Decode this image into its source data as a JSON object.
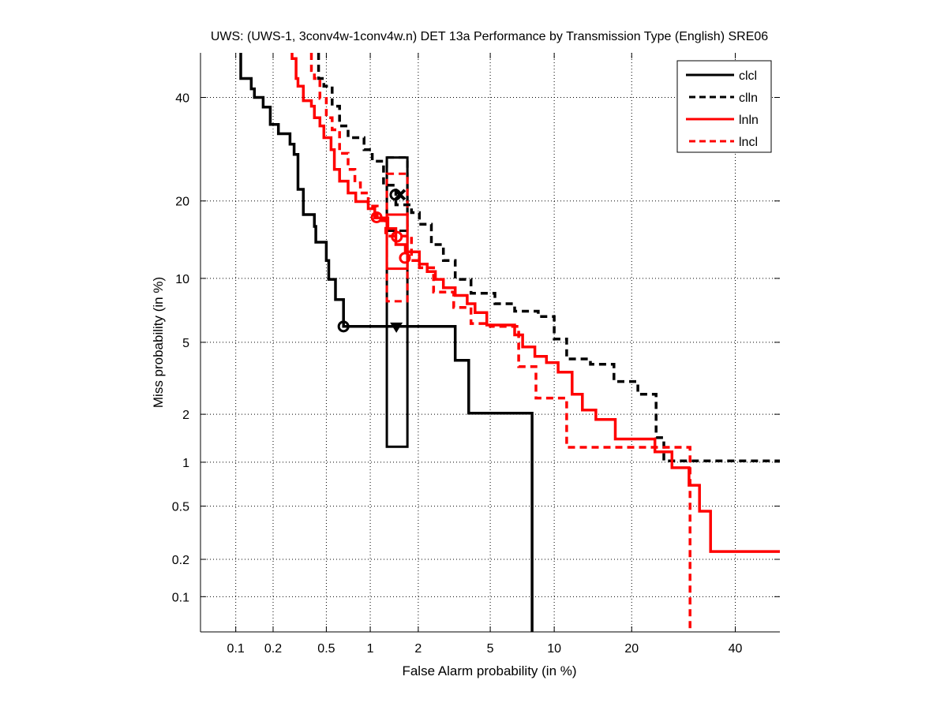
{
  "chart_data": {
    "type": "line",
    "title": "UWS: (UWS-1, 3conv4w-1conv4w.n) DET 13a Performance by Transmission Type (English) SRE06",
    "xlabel": "False Alarm probability (in %)",
    "ylabel": "Miss probability (in %)",
    "scale": "normal-deviate (probit)",
    "xlim": [
      0.05,
      50
    ],
    "ylim": [
      0.05,
      50
    ],
    "xticks": [
      "0.1",
      "0.2",
      "0.5",
      "1",
      "2",
      "5",
      "10",
      "20",
      "40"
    ],
    "yticks": [
      "0.1",
      "0.2",
      "0.5",
      "1",
      "2",
      "5",
      "10",
      "20",
      "40"
    ],
    "grid": true,
    "legend_position": "top-right",
    "series": [
      {
        "name": "clcl",
        "color": "#000000",
        "style": "solid",
        "points": [
          [
            0.11,
            50
          ],
          [
            0.11,
            44.2
          ],
          [
            0.134,
            44.2
          ],
          [
            0.134,
            41.9
          ],
          [
            0.142,
            41.9
          ],
          [
            0.142,
            40
          ],
          [
            0.167,
            40
          ],
          [
            0.167,
            37.9
          ],
          [
            0.19,
            37.9
          ],
          [
            0.19,
            34.2
          ],
          [
            0.22,
            34.2
          ],
          [
            0.22,
            32.3
          ],
          [
            0.27,
            32.3
          ],
          [
            0.27,
            30.2
          ],
          [
            0.29,
            30.2
          ],
          [
            0.29,
            28.2
          ],
          [
            0.31,
            28.2
          ],
          [
            0.31,
            21.9
          ],
          [
            0.34,
            21.9
          ],
          [
            0.34,
            17.9
          ],
          [
            0.41,
            17.9
          ],
          [
            0.41,
            16.2
          ],
          [
            0.42,
            16.2
          ],
          [
            0.42,
            14.1
          ],
          [
            0.5,
            14.1
          ],
          [
            0.5,
            11.9
          ],
          [
            0.52,
            11.9
          ],
          [
            0.52,
            9.9
          ],
          [
            0.58,
            9.9
          ],
          [
            0.58,
            8.05
          ],
          [
            0.66,
            8.05
          ],
          [
            0.66,
            6.0
          ],
          [
            3.26,
            6.0
          ],
          [
            3.26,
            4.03
          ],
          [
            3.86,
            4.03
          ],
          [
            3.86,
            2.03
          ],
          [
            7.97,
            2.03
          ],
          [
            7.97,
            0.05
          ]
        ],
        "markers": [
          {
            "type": "circle",
            "fa": 0.66,
            "miss": 6.0
          },
          {
            "type": "triangle",
            "fa": 1.47,
            "miss": 6.0
          }
        ],
        "confidence_box": {
          "fa": [
            1.28,
            1.72
          ],
          "miss": [
            1.26,
            27.6
          ]
        }
      },
      {
        "name": "clln",
        "color": "#000000",
        "style": "dashed",
        "points": [
          [
            0.44,
            50
          ],
          [
            0.44,
            44.2
          ],
          [
            0.48,
            44.2
          ],
          [
            0.48,
            42.5
          ],
          [
            0.55,
            42.5
          ],
          [
            0.55,
            38.1
          ],
          [
            0.62,
            38.1
          ],
          [
            0.62,
            33.9
          ],
          [
            0.71,
            33.9
          ],
          [
            0.71,
            31.5
          ],
          [
            0.91,
            31.5
          ],
          [
            0.91,
            29.1
          ],
          [
            1.03,
            29.1
          ],
          [
            1.03,
            26.9
          ],
          [
            1.22,
            26.9
          ],
          [
            1.22,
            22.6
          ],
          [
            1.46,
            22.6
          ],
          [
            1.46,
            19.4
          ],
          [
            1.82,
            19.4
          ],
          [
            1.82,
            18.2
          ],
          [
            2.03,
            18.2
          ],
          [
            2.03,
            16.5
          ],
          [
            2.39,
            16.5
          ],
          [
            2.39,
            13.8
          ],
          [
            2.8,
            13.8
          ],
          [
            2.8,
            11.9
          ],
          [
            3.26,
            11.9
          ],
          [
            3.26,
            9.9
          ],
          [
            3.97,
            9.9
          ],
          [
            3.97,
            8.6
          ],
          [
            5.28,
            8.6
          ],
          [
            5.28,
            7.7
          ],
          [
            6.6,
            7.7
          ],
          [
            6.6,
            7.1
          ],
          [
            8.5,
            7.1
          ],
          [
            8.5,
            6.7
          ],
          [
            10.0,
            6.7
          ],
          [
            10.0,
            5.2
          ],
          [
            11.3,
            5.2
          ],
          [
            11.3,
            4.1
          ],
          [
            14.1,
            4.1
          ],
          [
            14.1,
            3.84
          ],
          [
            17.3,
            3.84
          ],
          [
            17.3,
            3.09
          ],
          [
            21.0,
            3.09
          ],
          [
            21.0,
            2.62
          ],
          [
            24.1,
            2.62
          ],
          [
            24.1,
            1.44
          ],
          [
            25.5,
            1.44
          ],
          [
            25.5,
            1.02
          ],
          [
            50,
            1.02
          ]
        ],
        "markers": [
          {
            "type": "circle",
            "fa": 1.45,
            "miss": 21.0
          },
          {
            "type": "star",
            "fa": 1.55,
            "miss": 21.0
          }
        ],
        "confidence_box": {
          "fa": [
            1.28,
            1.72
          ],
          "miss": [
            15.6,
            27.6
          ]
        }
      },
      {
        "name": "lnln",
        "color": "#ff0000",
        "style": "solid",
        "points": [
          [
            0.28,
            50
          ],
          [
            0.28,
            48.7
          ],
          [
            0.3,
            48.7
          ],
          [
            0.3,
            44.2
          ],
          [
            0.31,
            44.2
          ],
          [
            0.31,
            42.5
          ],
          [
            0.34,
            42.5
          ],
          [
            0.34,
            39.3
          ],
          [
            0.39,
            39.3
          ],
          [
            0.39,
            38.1
          ],
          [
            0.41,
            38.1
          ],
          [
            0.41,
            35.6
          ],
          [
            0.45,
            35.6
          ],
          [
            0.45,
            33.9
          ],
          [
            0.48,
            33.9
          ],
          [
            0.48,
            31.5
          ],
          [
            0.54,
            31.5
          ],
          [
            0.54,
            29.1
          ],
          [
            0.57,
            29.1
          ],
          [
            0.57,
            25.4
          ],
          [
            0.62,
            25.4
          ],
          [
            0.62,
            23.3
          ],
          [
            0.71,
            23.3
          ],
          [
            0.71,
            21.3
          ],
          [
            0.8,
            21.3
          ],
          [
            0.8,
            19.9
          ],
          [
            0.97,
            19.9
          ],
          [
            0.97,
            18.8
          ],
          [
            1.07,
            18.8
          ],
          [
            1.07,
            17.4
          ],
          [
            1.3,
            17.4
          ],
          [
            1.3,
            15.9
          ],
          [
            1.46,
            15.9
          ],
          [
            1.46,
            13.8
          ],
          [
            1.67,
            13.8
          ],
          [
            1.67,
            12.9
          ],
          [
            2.03,
            12.9
          ],
          [
            2.03,
            11.5
          ],
          [
            2.26,
            11.5
          ],
          [
            2.26,
            10.7
          ],
          [
            2.52,
            10.7
          ],
          [
            2.52,
            9.9
          ],
          [
            2.8,
            9.9
          ],
          [
            2.8,
            9.1
          ],
          [
            3.26,
            9.1
          ],
          [
            3.26,
            8.4
          ],
          [
            3.79,
            8.4
          ],
          [
            3.79,
            7.7
          ],
          [
            4.17,
            7.7
          ],
          [
            4.17,
            7.0
          ],
          [
            4.8,
            7.0
          ],
          [
            4.8,
            6.1
          ],
          [
            6.6,
            6.1
          ],
          [
            6.6,
            5.45
          ],
          [
            7.2,
            5.45
          ],
          [
            7.2,
            4.74
          ],
          [
            8.2,
            4.74
          ],
          [
            8.2,
            4.23
          ],
          [
            9.25,
            4.23
          ],
          [
            9.25,
            3.92
          ],
          [
            10.4,
            3.92
          ],
          [
            10.4,
            3.48
          ],
          [
            11.9,
            3.48
          ],
          [
            11.9,
            2.62
          ],
          [
            13.1,
            2.62
          ],
          [
            13.1,
            2.12
          ],
          [
            14.8,
            2.12
          ],
          [
            14.8,
            1.86
          ],
          [
            17.5,
            1.86
          ],
          [
            17.5,
            1.41
          ],
          [
            23.9,
            1.41
          ],
          [
            23.9,
            1.17
          ],
          [
            27.0,
            1.17
          ],
          [
            27.0,
            0.92
          ],
          [
            30.3,
            0.92
          ],
          [
            30.3,
            0.7
          ],
          [
            32.4,
            0.7
          ],
          [
            32.4,
            0.46
          ],
          [
            34.7,
            0.46
          ],
          [
            34.7,
            0.23
          ],
          [
            50,
            0.23
          ]
        ],
        "markers": [
          {
            "type": "circle",
            "fa": 1.1,
            "miss": 17.5
          },
          {
            "type": "circle",
            "fa": 1.48,
            "miss": 14.8
          },
          {
            "type": "circle",
            "fa": 1.66,
            "miss": 12.2
          }
        ],
        "confidence_box": {
          "fa": [
            1.28,
            1.72
          ],
          "miss": [
            11.0,
            17.9
          ]
        }
      },
      {
        "name": "lncl",
        "color": "#ff0000",
        "style": "dashed",
        "points": [
          [
            0.39,
            50
          ],
          [
            0.39,
            46.0
          ],
          [
            0.41,
            46.0
          ],
          [
            0.41,
            44.2
          ],
          [
            0.45,
            44.2
          ],
          [
            0.45,
            39.8
          ],
          [
            0.5,
            39.8
          ],
          [
            0.5,
            35.6
          ],
          [
            0.55,
            35.6
          ],
          [
            0.55,
            33.1
          ],
          [
            0.62,
            33.1
          ],
          [
            0.62,
            28.4
          ],
          [
            0.71,
            28.4
          ],
          [
            0.71,
            25.4
          ],
          [
            0.79,
            25.4
          ],
          [
            0.79,
            23.0
          ],
          [
            0.86,
            23.0
          ],
          [
            0.86,
            21.3
          ],
          [
            0.97,
            21.3
          ],
          [
            0.97,
            19.2
          ],
          [
            1.11,
            19.2
          ],
          [
            1.11,
            17.0
          ],
          [
            1.26,
            17.0
          ],
          [
            1.26,
            14.9
          ],
          [
            1.82,
            14.9
          ],
          [
            1.82,
            11.9
          ],
          [
            2.03,
            11.9
          ],
          [
            2.03,
            11.1
          ],
          [
            2.46,
            11.1
          ],
          [
            2.46,
            8.7
          ],
          [
            3.2,
            8.7
          ],
          [
            3.2,
            7.4
          ],
          [
            3.97,
            7.4
          ],
          [
            3.97,
            6.2
          ],
          [
            5.0,
            6.2
          ],
          [
            5.0,
            6.0
          ],
          [
            6.9,
            6.0
          ],
          [
            6.9,
            3.73
          ],
          [
            8.3,
            3.73
          ],
          [
            8.3,
            2.49
          ],
          [
            11.3,
            2.49
          ],
          [
            11.3,
            1.25
          ],
          [
            30.5,
            1.25
          ],
          [
            30.5,
            0.05
          ]
        ],
        "markers": [],
        "confidence_box": {
          "fa": [
            1.28,
            1.72
          ],
          "miss": [
            7.9,
            24.6
          ]
        }
      }
    ]
  }
}
